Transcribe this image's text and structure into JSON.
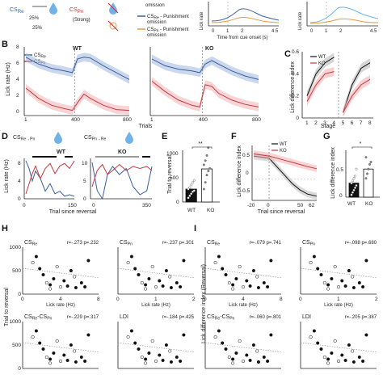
{
  "colors": {
    "wt": "#3a5f9c",
    "ko": "#c8383d",
    "wt_band": "#9fb6dc",
    "ko_band": "#f0b2b4",
    "bar": "#111111",
    "light_blue": "#6fb3e8",
    "orange": "#e89a3c"
  },
  "icons": [
    "water-drop-icon",
    "crossed-water-drop-icon",
    "punishment-icon"
  ],
  "panelA": {
    "cs_re": "CS",
    "cs_re_sub": "Re",
    "cs_pn": "CS",
    "cs_pn_sub": "Pn",
    "strong": "(Strong)",
    "pct1": "25%",
    "pct2": "25%",
    "legend": [
      {
        "cs": "CS",
        "sub": "Re",
        "text": " - Punishment"
      },
      {
        "text": "omission"
      },
      {
        "cs": "CS",
        "sub": "Pn",
        "text": " - Punishment"
      },
      {
        "text": "omission"
      }
    ],
    "top_label": "omission"
  },
  "panelA_plots": {
    "ylabel": "Lick rate",
    "xlabel": "Time from cue onset (s)",
    "xticks": [
      "0",
      "1",
      "2",
      "4.5"
    ],
    "xticks2": [
      "0",
      "1",
      "2",
      "4.5"
    ]
  },
  "panelB": {
    "letter": "B",
    "wt_title": "WT",
    "ko_title": "KO",
    "ylabel": "Lick rate (Hz)",
    "xlabel": "Trials",
    "yticks": [
      "0",
      "2",
      "4",
      "6",
      "8"
    ],
    "xticks_wt": [
      "1",
      "400",
      "800"
    ],
    "xticks_ko": [
      "1",
      "400",
      "800"
    ],
    "legend": [
      {
        "cs": "CS",
        "sub": "Re"
      },
      {
        "cs": "CS",
        "sub": "Pn"
      }
    ]
  },
  "panelC": {
    "letter": "C",
    "ylabel": "Lick difference index",
    "xlabel": "Stage",
    "yticks": [
      "0",
      "0.2",
      "0.4",
      "0.6"
    ],
    "xticks": [
      "1",
      "2",
      "3",
      "4",
      "5",
      "6",
      "7",
      "8"
    ],
    "legend": [
      "WT",
      "KO"
    ]
  },
  "panelD": {
    "letter": "D",
    "rule1": {
      "cs": "CS",
      "sub": "Re→Pn"
    },
    "rule2": {
      "cs": "CS",
      "sub": "Pn→Re"
    },
    "wt_title": "WT",
    "ko_title": "KO",
    "ylabel": "Lick rate (Hz)",
    "xlabel": "Trial since reversal",
    "yticks_wt": [
      "0",
      "4",
      "8"
    ],
    "yticks_ko": [
      "0",
      "5",
      "10"
    ],
    "xticks_wt": [
      "0",
      "150"
    ],
    "xticks_ko": [
      "0",
      "350"
    ]
  },
  "panelE": {
    "letter": "E",
    "ylabel": "Trial to reversal",
    "sig": "**",
    "yticks": [
      "0",
      "500",
      "1000"
    ],
    "categories": [
      "WT",
      "KO"
    ]
  },
  "panelF": {
    "letter": "F",
    "ylabel": "Lick difference index",
    "xlabel": "Trial since reversal",
    "yticks": [
      "-0.5",
      "0",
      "0.5"
    ],
    "xticks": [
      "-20",
      "0",
      "50",
      "62"
    ],
    "legend": [
      "WT",
      "KO"
    ]
  },
  "panelG": {
    "letter": "G",
    "ylabel": "Lick difference index",
    "sig": "*",
    "yticks": [
      "0",
      "0.5"
    ],
    "categories": [
      "WT",
      "KO"
    ]
  },
  "panelH": {
    "letter": "H",
    "ylabel": "Trial to reversal",
    "subplots": [
      {
        "title": "CS",
        "sub": "Re",
        "stats": "r=-.273  p=.232",
        "xticks": [
          "0",
          "4",
          "8"
        ],
        "xlabel": "Lick rate (Hz)",
        "yticks": [
          "0",
          "500",
          "1000"
        ]
      },
      {
        "title": "CS",
        "sub": "Pn",
        "stats": "r=-.237  p=.301",
        "xticks": [
          "0",
          "1",
          "2"
        ],
        "xlabel": "Lick rate (Hz)"
      },
      {
        "title": "CS",
        "sub": "Re",
        "title2": "-CS",
        "sub2": "Pn",
        "stats": "r=-.229  p=.317",
        "xticks": [],
        "xlabel": "",
        "yticks": [
          "0",
          "500",
          "1000"
        ]
      },
      {
        "title": "LDI",
        "sub": "",
        "stats": "r=-.184  p=.425",
        "xticks": [],
        "xlabel": ""
      }
    ]
  },
  "panelI": {
    "letter": "I",
    "ylabel": "Lick difference index (Reversal)",
    "subplots": [
      {
        "title": "CS",
        "sub": "Re",
        "stats": "r=-.079  p=.741",
        "xticks": [
          "0",
          "4",
          "8"
        ],
        "xlabel": "Lick rate (Hz)"
      },
      {
        "title": "CS",
        "sub": "Pn",
        "stats": "r=-.098  p=.680",
        "xticks": [
          "0",
          "1",
          "2"
        ],
        "xlabel": "Lick rate (Hz)"
      },
      {
        "title": "CS",
        "sub": "Re",
        "title2": "-CS",
        "sub2": "Pn",
        "stats": "r=-.060  p=.801",
        "xticks": [],
        "xlabel": ""
      },
      {
        "title": "LDI",
        "sub": "",
        "stats": "r=-.205  p=.387",
        "xticks": [],
        "xlabel": ""
      }
    ]
  },
  "chart_data": [
    {
      "type": "line",
      "panel": "B-WT",
      "x_range": [
        1,
        800
      ],
      "ylim": [
        0,
        8
      ],
      "series": [
        {
          "name": "CS Re",
          "x": [
            1,
            100,
            200,
            300,
            360,
            400,
            450,
            500,
            600,
            700,
            800
          ],
          "values": [
            6.8,
            6.0,
            5.5,
            5.2,
            5.0,
            6.6,
            6.8,
            6.7,
            5.8,
            5.0,
            4.2
          ]
        },
        {
          "name": "CS Pn",
          "x": [
            1,
            100,
            200,
            300,
            360,
            400,
            450,
            500,
            600,
            700,
            800
          ],
          "values": [
            3.2,
            2.0,
            1.2,
            0.8,
            0.6,
            1.5,
            2.5,
            2.0,
            1.2,
            0.7,
            0.6
          ]
        }
      ]
    },
    {
      "type": "line",
      "panel": "B-KO",
      "x_range": [
        1,
        800
      ],
      "ylim": [
        0,
        8
      ],
      "series": [
        {
          "name": "CS Re",
          "x": [
            1,
            100,
            200,
            300,
            360,
            400,
            450,
            500,
            600,
            700,
            800
          ],
          "values": [
            6.6,
            5.8,
            5.4,
            5.2,
            5.0,
            6.0,
            6.4,
            6.0,
            5.2,
            4.6,
            4.2
          ]
        },
        {
          "name": "CS Pn",
          "x": [
            1,
            100,
            200,
            300,
            360,
            400,
            450,
            500,
            600,
            700,
            800
          ],
          "values": [
            4.0,
            2.8,
            1.8,
            1.2,
            1.0,
            3.6,
            3.4,
            2.6,
            1.8,
            1.3,
            1.0
          ]
        }
      ]
    },
    {
      "type": "line",
      "panel": "C",
      "x": [
        1,
        2,
        3,
        4,
        5,
        6,
        7,
        8
      ],
      "ylim": [
        0,
        0.6
      ],
      "series": [
        {
          "name": "WT",
          "values": [
            0.2,
            0.4,
            0.5,
            0.55,
            0.05,
            0.3,
            0.45,
            0.5
          ]
        },
        {
          "name": "KO",
          "values": [
            0.15,
            0.3,
            0.4,
            0.42,
            0.05,
            0.2,
            0.3,
            0.35
          ]
        }
      ]
    },
    {
      "type": "line",
      "panel": "D-WT",
      "x_range": [
        0,
        150
      ],
      "ylim": [
        0,
        8
      ],
      "series": [
        {
          "name": "CS Re→Pn",
          "x": [
            0,
            10,
            20,
            30,
            45,
            60,
            75,
            90,
            105,
            120,
            135,
            150
          ],
          "values": [
            7.5,
            6.0,
            3.5,
            5.5,
            4.0,
            1.5,
            3.0,
            1.0,
            1.5,
            0.5,
            0.8,
            0.5
          ]
        },
        {
          "name": "CS Pn→Re",
          "x": [
            0,
            10,
            20,
            30,
            45,
            60,
            75,
            90,
            105,
            120,
            135,
            150
          ],
          "values": [
            1.0,
            3.0,
            5.0,
            6.5,
            4.0,
            6.0,
            7.0,
            5.0,
            6.5,
            7.0,
            6.0,
            7.5
          ]
        }
      ]
    },
    {
      "type": "line",
      "panel": "D-KO",
      "x_range": [
        0,
        350
      ],
      "ylim": [
        0,
        10
      ],
      "series": [
        {
          "name": "CS Re→Pn",
          "x": [
            0,
            30,
            60,
            90,
            120,
            160,
            200,
            240,
            280,
            320,
            350
          ],
          "values": [
            9.0,
            2.0,
            0.0,
            6.0,
            8.0,
            6.0,
            7.5,
            3.0,
            1.0,
            2.0,
            8.0
          ]
        },
        {
          "name": "CS Pn→Re",
          "x": [
            0,
            30,
            60,
            90,
            120,
            160,
            200,
            240,
            280,
            320,
            350
          ],
          "values": [
            3.0,
            7.0,
            8.5,
            6.0,
            7.0,
            8.5,
            7.0,
            8.0,
            7.5,
            8.0,
            7.0
          ]
        }
      ]
    },
    {
      "type": "bar",
      "panel": "E",
      "categories": [
        "WT",
        "KO"
      ],
      "values": [
        250,
        640
      ],
      "ylim": [
        0,
        1000
      ],
      "points": [
        [
          80,
          120,
          160,
          200,
          220,
          250,
          280,
          330,
          380,
          420
        ],
        [
          250,
          380,
          520,
          600,
          650,
          720,
          800,
          900,
          1050
        ]
      ]
    },
    {
      "type": "line",
      "panel": "F",
      "x_range": [
        -20,
        62
      ],
      "ylim": [
        -0.5,
        0.8
      ],
      "series": [
        {
          "name": "WT",
          "x": [
            -20,
            0,
            10,
            20,
            30,
            40,
            50,
            62
          ],
          "values": [
            0.55,
            0.5,
            0.3,
            0.1,
            -0.1,
            -0.25,
            -0.35,
            -0.4
          ]
        },
        {
          "name": "KO",
          "x": [
            -20,
            0,
            10,
            20,
            30,
            40,
            50,
            62
          ],
          "values": [
            0.6,
            0.55,
            0.5,
            0.45,
            0.4,
            0.35,
            0.3,
            0.25
          ]
        }
      ]
    },
    {
      "type": "bar",
      "panel": "G",
      "categories": [
        "WT",
        "KO"
      ],
      "values": [
        0.3,
        0.6
      ],
      "ylim": [
        0,
        1.0
      ],
      "points": [
        [
          0.05,
          0.1,
          0.15,
          0.2,
          0.25,
          0.3,
          0.35,
          0.4,
          0.45,
          0.6
        ],
        [
          0.4,
          0.5,
          0.6,
          0.7,
          0.75,
          0.85
        ]
      ]
    }
  ]
}
